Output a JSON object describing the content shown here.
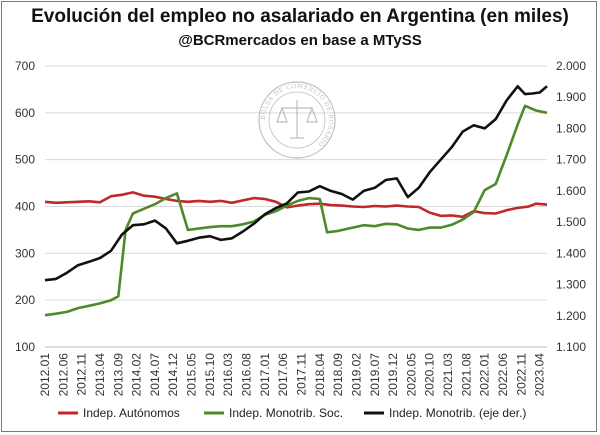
{
  "chart_data": {
    "type": "line",
    "title": "Evolución del empleo no asalariado en Argentina (en miles)",
    "subtitle": "@BCRmercados en base a MTySS",
    "y_left": {
      "lim": [
        100,
        700
      ],
      "ticks": [
        "100",
        "200",
        "300",
        "400",
        "500",
        "600",
        "700"
      ]
    },
    "y_right": {
      "lim": [
        1.1,
        2.0
      ],
      "ticks": [
        "1.100",
        "1.200",
        "1.300",
        "1.400",
        "1.500",
        "1.600",
        "1.700",
        "1.800",
        "1.900",
        "2.000"
      ]
    },
    "x_ticks": [
      "2012.01",
      "2012.06",
      "2012.11",
      "2013.04",
      "2013.09",
      "2014.02",
      "2014.07",
      "2014.12",
      "2015.05",
      "2015.10",
      "2016.03",
      "2016.08",
      "2017.01",
      "2017.06",
      "2017.11",
      "2018.04",
      "2018.09",
      "2019.02",
      "2019.07",
      "2019.12",
      "2020.05",
      "2020.10",
      "2021.03",
      "2021.08",
      "2022.01",
      "2022.06",
      "2022.11",
      "2023.04"
    ],
    "x_start": "2012.01",
    "x_end": "2023.06",
    "grid": "horizontal",
    "legend_position": "bottom",
    "series": [
      {
        "name": "Indep. Autónomos",
        "axis": "left",
        "color": "#c0282a",
        "points": [
          [
            "2012.01",
            410
          ],
          [
            "2012.04",
            408
          ],
          [
            "2012.07",
            409
          ],
          [
            "2012.10",
            410
          ],
          [
            "2013.01",
            411
          ],
          [
            "2013.04",
            409
          ],
          [
            "2013.07",
            422
          ],
          [
            "2013.10",
            425
          ],
          [
            "2014.01",
            430
          ],
          [
            "2014.04",
            423
          ],
          [
            "2014.07",
            421
          ],
          [
            "2014.10",
            416
          ],
          [
            "2015.01",
            412
          ],
          [
            "2015.04",
            410
          ],
          [
            "2015.07",
            412
          ],
          [
            "2015.10",
            410
          ],
          [
            "2016.01",
            412
          ],
          [
            "2016.04",
            408
          ],
          [
            "2016.07",
            413
          ],
          [
            "2016.10",
            418
          ],
          [
            "2017.01",
            416
          ],
          [
            "2017.04",
            410
          ],
          [
            "2017.07",
            398
          ],
          [
            "2017.10",
            402
          ],
          [
            "2018.01",
            405
          ],
          [
            "2018.04",
            406
          ],
          [
            "2018.07",
            403
          ],
          [
            "2018.10",
            402
          ],
          [
            "2019.01",
            400
          ],
          [
            "2019.04",
            399
          ],
          [
            "2019.07",
            401
          ],
          [
            "2019.10",
            400
          ],
          [
            "2020.01",
            402
          ],
          [
            "2020.04",
            400
          ],
          [
            "2020.07",
            399
          ],
          [
            "2020.10",
            387
          ],
          [
            "2021.01",
            380
          ],
          [
            "2021.04",
            381
          ],
          [
            "2021.07",
            378
          ],
          [
            "2021.10",
            390
          ],
          [
            "2022.01",
            386
          ],
          [
            "2022.04",
            385
          ],
          [
            "2022.07",
            392
          ],
          [
            "2022.10",
            397
          ],
          [
            "2023.01",
            400
          ],
          [
            "2023.03",
            406
          ],
          [
            "2023.06",
            404
          ]
        ]
      },
      {
        "name": "Indep. Monotrib. Soc.",
        "axis": "left",
        "color": "#4e8a2a",
        "points": [
          [
            "2012.01",
            168
          ],
          [
            "2012.04",
            171
          ],
          [
            "2012.07",
            175
          ],
          [
            "2012.10",
            183
          ],
          [
            "2013.01",
            188
          ],
          [
            "2013.04",
            193
          ],
          [
            "2013.07",
            200
          ],
          [
            "2013.09",
            208
          ],
          [
            "2013.11",
            350
          ],
          [
            "2014.01",
            385
          ],
          [
            "2014.04",
            395
          ],
          [
            "2014.07",
            405
          ],
          [
            "2014.10",
            418
          ],
          [
            "2015.01",
            428
          ],
          [
            "2015.04",
            350
          ],
          [
            "2015.07",
            353
          ],
          [
            "2015.10",
            356
          ],
          [
            "2016.01",
            358
          ],
          [
            "2016.04",
            358
          ],
          [
            "2016.07",
            362
          ],
          [
            "2016.10",
            368
          ],
          [
            "2017.01",
            382
          ],
          [
            "2017.04",
            390
          ],
          [
            "2017.07",
            402
          ],
          [
            "2017.10",
            412
          ],
          [
            "2018.01",
            418
          ],
          [
            "2018.04",
            416
          ],
          [
            "2018.06",
            345
          ],
          [
            "2018.09",
            348
          ],
          [
            "2019.01",
            355
          ],
          [
            "2019.04",
            360
          ],
          [
            "2019.07",
            358
          ],
          [
            "2019.10",
            363
          ],
          [
            "2020.01",
            362
          ],
          [
            "2020.04",
            353
          ],
          [
            "2020.07",
            350
          ],
          [
            "2020.10",
            355
          ],
          [
            "2021.01",
            355
          ],
          [
            "2021.04",
            361
          ],
          [
            "2021.07",
            372
          ],
          [
            "2021.10",
            388
          ],
          [
            "2022.01",
            435
          ],
          [
            "2022.04",
            448
          ],
          [
            "2022.07",
            510
          ],
          [
            "2022.10",
            575
          ],
          [
            "2022.12",
            615
          ],
          [
            "2023.03",
            605
          ],
          [
            "2023.06",
            600
          ]
        ]
      },
      {
        "name": "Indep. Monotrib. (eje der.)",
        "axis": "right",
        "color": "#111111",
        "points": [
          [
            "2012.01",
            1.314
          ],
          [
            "2012.04",
            1.318
          ],
          [
            "2012.07",
            1.338
          ],
          [
            "2012.10",
            1.362
          ],
          [
            "2013.01",
            1.373
          ],
          [
            "2013.04",
            1.385
          ],
          [
            "2013.07",
            1.408
          ],
          [
            "2013.10",
            1.46
          ],
          [
            "2014.01",
            1.49
          ],
          [
            "2014.04",
            1.493
          ],
          [
            "2014.07",
            1.505
          ],
          [
            "2014.10",
            1.48
          ],
          [
            "2015.01",
            1.432
          ],
          [
            "2015.04",
            1.44
          ],
          [
            "2015.07",
            1.45
          ],
          [
            "2015.10",
            1.455
          ],
          [
            "2016.01",
            1.443
          ],
          [
            "2016.04",
            1.448
          ],
          [
            "2016.07",
            1.47
          ],
          [
            "2016.10",
            1.495
          ],
          [
            "2017.01",
            1.525
          ],
          [
            "2017.04",
            1.545
          ],
          [
            "2017.07",
            1.56
          ],
          [
            "2017.10",
            1.595
          ],
          [
            "2018.01",
            1.598
          ],
          [
            "2018.04",
            1.615
          ],
          [
            "2018.07",
            1.6
          ],
          [
            "2018.10",
            1.59
          ],
          [
            "2019.01",
            1.572
          ],
          [
            "2019.04",
            1.6
          ],
          [
            "2019.07",
            1.61
          ],
          [
            "2019.10",
            1.635
          ],
          [
            "2020.01",
            1.64
          ],
          [
            "2020.04",
            1.58
          ],
          [
            "2020.07",
            1.61
          ],
          [
            "2020.10",
            1.66
          ],
          [
            "2021.01",
            1.7
          ],
          [
            "2021.04",
            1.74
          ],
          [
            "2021.07",
            1.79
          ],
          [
            "2021.10",
            1.81
          ],
          [
            "2022.01",
            1.8
          ],
          [
            "2022.04",
            1.83
          ],
          [
            "2022.07",
            1.89
          ],
          [
            "2022.10",
            1.935
          ],
          [
            "2022.12",
            1.91
          ],
          [
            "2023.02",
            1.912
          ],
          [
            "2023.04",
            1.915
          ],
          [
            "2023.06",
            1.935
          ]
        ]
      }
    ]
  },
  "watermark": {
    "ring_text": "BOLSA DE COMERCIO DE ROSARIO",
    "icon": "scales-of-justice-icon"
  }
}
